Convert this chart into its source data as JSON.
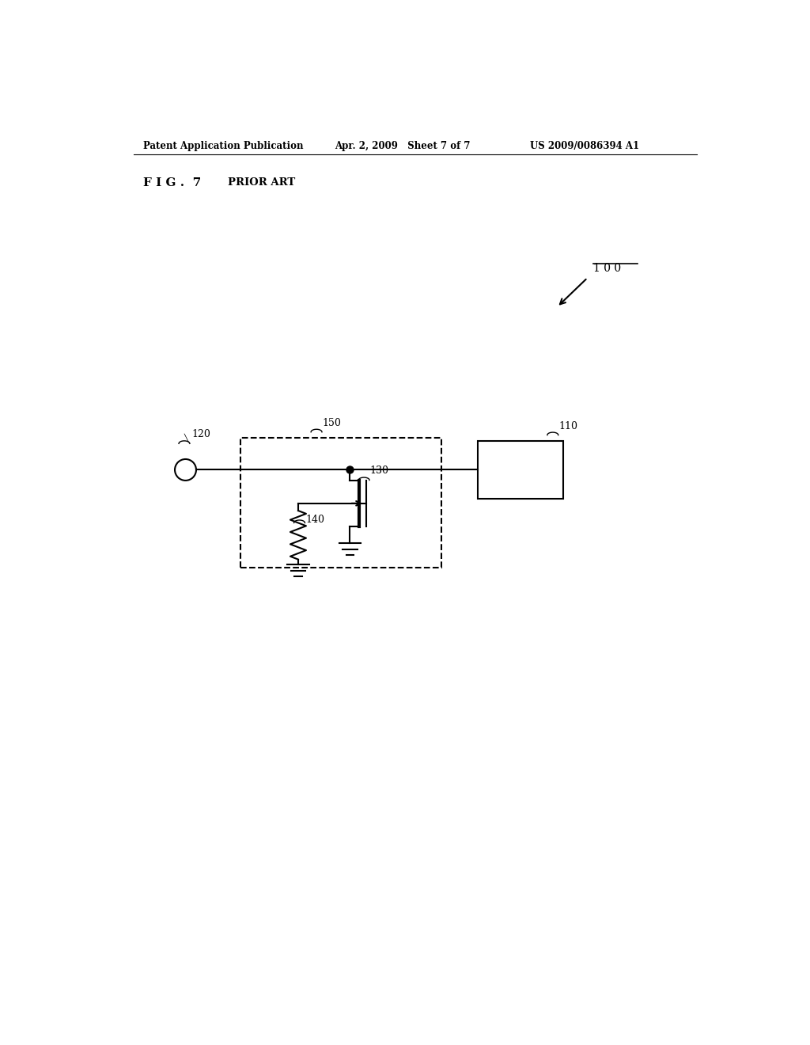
{
  "bg_color": "#ffffff",
  "line_color": "#000000",
  "fig_width": 10.24,
  "fig_height": 13.2,
  "header_left": "Patent Application Publication",
  "header_mid": "Apr. 2, 2009   Sheet 7 of 7",
  "header_right": "US 2009/0086394 A1",
  "fig_label": "F I G .  7",
  "prior_art_label": "PRIOR ART",
  "label_100": "1 0 0",
  "label_110": "110",
  "label_120": "120",
  "label_130": "130",
  "label_140": "140",
  "label_150": "150"
}
